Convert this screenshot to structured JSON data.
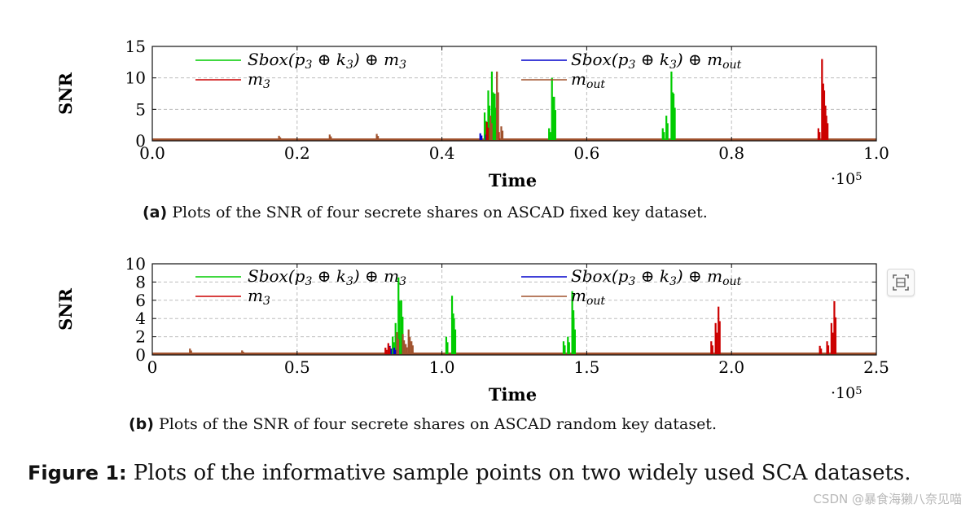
{
  "chart_data": [
    {
      "type": "line",
      "panel": "a",
      "ylabel": "SNR",
      "xlabel": "Time",
      "x_multiplier_label": "·10",
      "x_multiplier_exp": "5",
      "xlim": [
        0,
        100000
      ],
      "ylim": [
        0,
        15
      ],
      "xtick_values": [
        0,
        20000,
        40000,
        60000,
        80000,
        100000
      ],
      "xtick_labels": [
        "0.0",
        "0.2",
        "0.4",
        "0.6",
        "0.8",
        "1.0"
      ],
      "ytick_values": [
        0,
        5,
        10,
        15
      ],
      "ytick_labels": [
        "0",
        "5",
        "10",
        "15"
      ],
      "grid": true,
      "legend": [
        "Sbox(p3 ⊕ k3) ⊕ m3",
        "Sbox(p3 ⊕ k3) ⊕ mout",
        "m3",
        "mout"
      ],
      "series": [
        {
          "name": "Sbox(p3 ⊕ k3) ⊕ m3",
          "color": "#00cc00",
          "peaks": [
            [
              45900,
              4.5
            ],
            [
              46400,
              8.0
            ],
            [
              46900,
              11.0
            ],
            [
              47300,
              7.5
            ],
            [
              54800,
              2.0
            ],
            [
              55200,
              10.0
            ],
            [
              55500,
              7.0
            ],
            [
              70500,
              2.0
            ],
            [
              71000,
              4.0
            ],
            [
              71700,
              11.0
            ],
            [
              72000,
              7.5
            ]
          ]
        },
        {
          "name": "Sbox(p3 ⊕ k3) ⊕ mout",
          "color": "#0000cc",
          "peaks": [
            [
              45300,
              1.2
            ],
            [
              46100,
              1.0
            ]
          ]
        },
        {
          "name": "m3",
          "color": "#cc0000",
          "peaks": [
            [
              46200,
              3.0
            ],
            [
              47700,
              2.0
            ],
            [
              92000,
              2.0
            ],
            [
              92500,
              13.0
            ],
            [
              92800,
              8.0
            ],
            [
              93100,
              4.0
            ]
          ]
        },
        {
          "name": "mout",
          "color": "#a0522d",
          "peaks": [
            [
              17500,
              0.8
            ],
            [
              24500,
              1.0
            ],
            [
              31000,
              1.1
            ],
            [
              46700,
              4.0
            ],
            [
              47600,
              11.0
            ],
            [
              48200,
              2.3
            ]
          ]
        }
      ]
    },
    {
      "type": "line",
      "panel": "b",
      "ylabel": "SNR",
      "xlabel": "Time",
      "x_multiplier_label": "·10",
      "x_multiplier_exp": "5",
      "xlim": [
        0,
        250000
      ],
      "ylim": [
        0,
        10
      ],
      "xtick_values": [
        0,
        50000,
        100000,
        150000,
        200000,
        250000
      ],
      "xtick_labels": [
        "0",
        "0.5",
        "1.0",
        "1.5",
        "2.0",
        "2.5"
      ],
      "ytick_values": [
        0,
        2,
        4,
        6,
        8,
        10
      ],
      "ytick_labels": [
        "0",
        "2",
        "4",
        "6",
        "8",
        "10"
      ],
      "grid": true,
      "legend": [
        "Sbox(p3 ⊕ k3) ⊕ m3",
        "Sbox(p3 ⊕ k3) ⊕ mout",
        "m3",
        "mout"
      ],
      "series": [
        {
          "name": "Sbox(p3 ⊕ k3) ⊕ m3",
          "color": "#00cc00",
          "peaks": [
            [
              83000,
              2.0
            ],
            [
              84000,
              3.5
            ],
            [
              85000,
              8.5
            ],
            [
              86000,
              6.0
            ],
            [
              101500,
              2.0
            ],
            [
              103500,
              6.5
            ],
            [
              104200,
              4.0
            ],
            [
              142000,
              1.5
            ],
            [
              143500,
              2.0
            ],
            [
              145000,
              7.0
            ],
            [
              145500,
              4.0
            ]
          ]
        },
        {
          "name": "Sbox(p3 ⊕ k3) ⊕ mout",
          "color": "#0000cc",
          "peaks": [
            [
              82000,
              1.0
            ],
            [
              83500,
              0.8
            ]
          ]
        },
        {
          "name": "m3",
          "color": "#cc0000",
          "peaks": [
            [
              80500,
              0.8
            ],
            [
              81500,
              1.3
            ],
            [
              193000,
              1.5
            ],
            [
              194500,
              3.5
            ],
            [
              195500,
              5.3
            ],
            [
              230500,
              1.0
            ],
            [
              233000,
              1.5
            ],
            [
              234500,
              3.5
            ],
            [
              235500,
              5.9
            ]
          ]
        },
        {
          "name": "mout",
          "color": "#a0522d",
          "peaks": [
            [
              13000,
              0.7
            ],
            [
              31000,
              0.5
            ],
            [
              84500,
              2.5
            ],
            [
              86500,
              2.3
            ],
            [
              87500,
              1.2
            ],
            [
              88500,
              2.8
            ],
            [
              89500,
              1.5
            ]
          ]
        }
      ]
    }
  ],
  "captions": {
    "a_label": "(a)",
    "a_text": " Plots of the SNR of four secrete shares on ASCAD fixed key dataset.",
    "b_label": "(b)",
    "b_text": " Plots of the SNR of four secrete shares on ASCAD random key dataset.",
    "fig_label": "Figure 1:",
    "fig_text": " Plots of the informative sample points on two widely used SCA datasets."
  },
  "watermark": "CSDN @暴食海獭八奈见喵",
  "icons": {
    "scan": "scan-icon"
  }
}
